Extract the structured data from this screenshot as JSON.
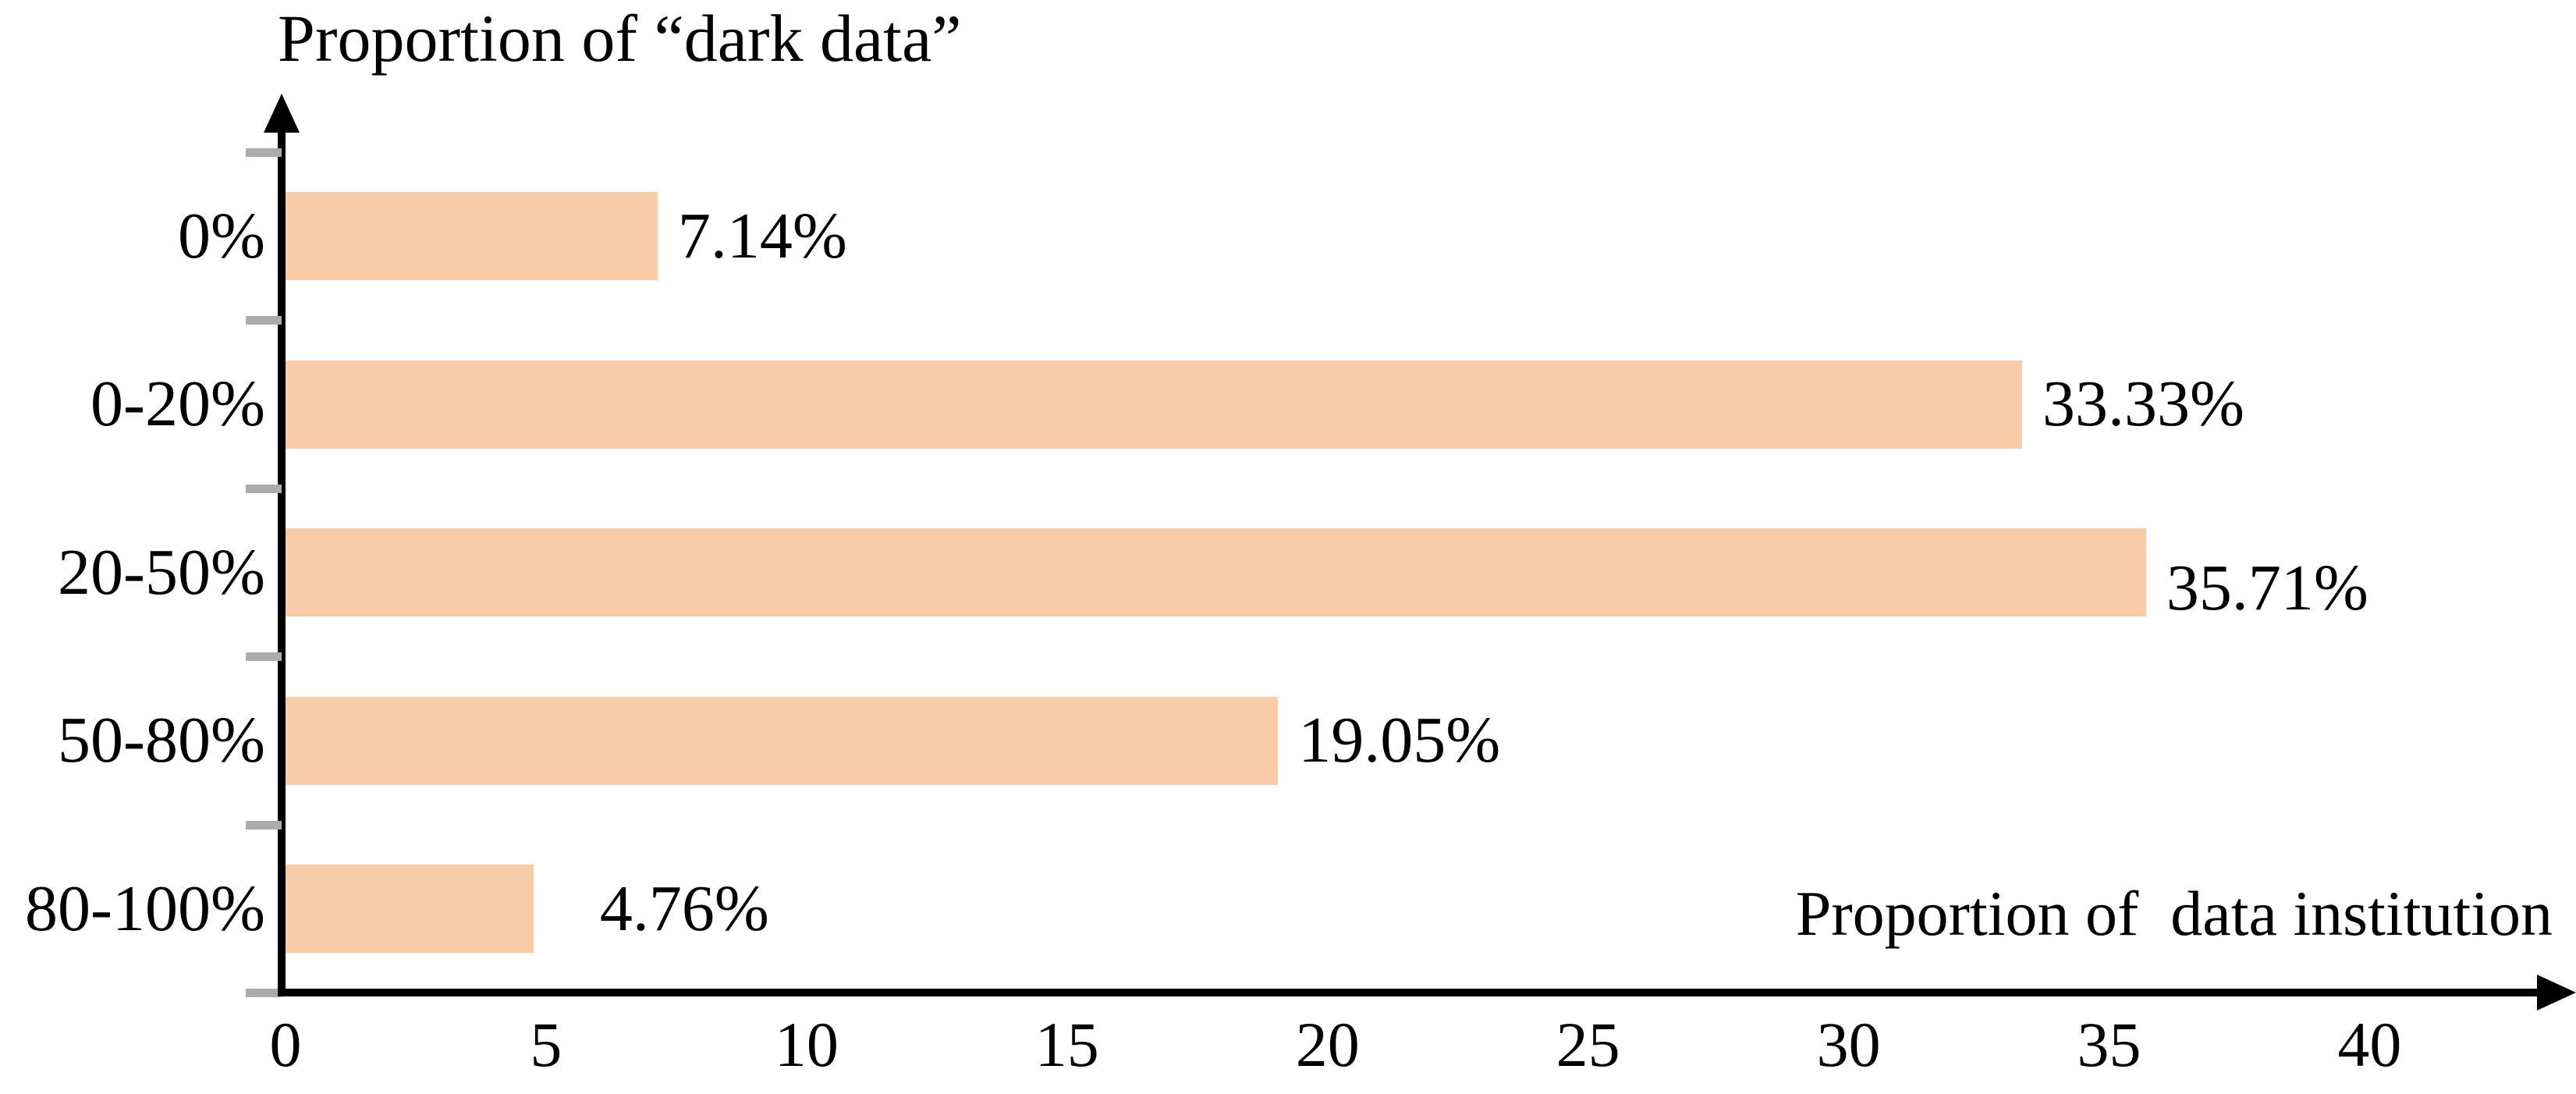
{
  "chart_data": {
    "type": "bar",
    "orientation": "horizontal",
    "title": "Proportion of “dark data”",
    "xlabel": "Proportion of  data institution",
    "ylabel": "Proportion of “dark data”",
    "categories": [
      "0%",
      "0-20%",
      "20-50%",
      "50-80%",
      "80-100%"
    ],
    "values": [
      7.14,
      33.33,
      35.71,
      19.05,
      4.76
    ],
    "value_labels": [
      "7.14%",
      "33.33%",
      "35.71%",
      "19.05%",
      "4.76%"
    ],
    "x_ticks": [
      "0",
      "5",
      "10",
      "15",
      "20",
      "25",
      "30",
      "35",
      "40"
    ],
    "xlim": [
      0,
      42
    ],
    "grid": false,
    "legend": false,
    "layout_hint": "bars grow rightward from y-axis; value labels right of bars; gray tick dashes on y-axis at category band boundaries; arrowheads on both axes",
    "colors": {
      "bar": "#F8CCA9",
      "axis": "#000000",
      "text": "#000000",
      "y_tick_mark": "#ABABAB",
      "background": "#FFFFFF"
    }
  }
}
